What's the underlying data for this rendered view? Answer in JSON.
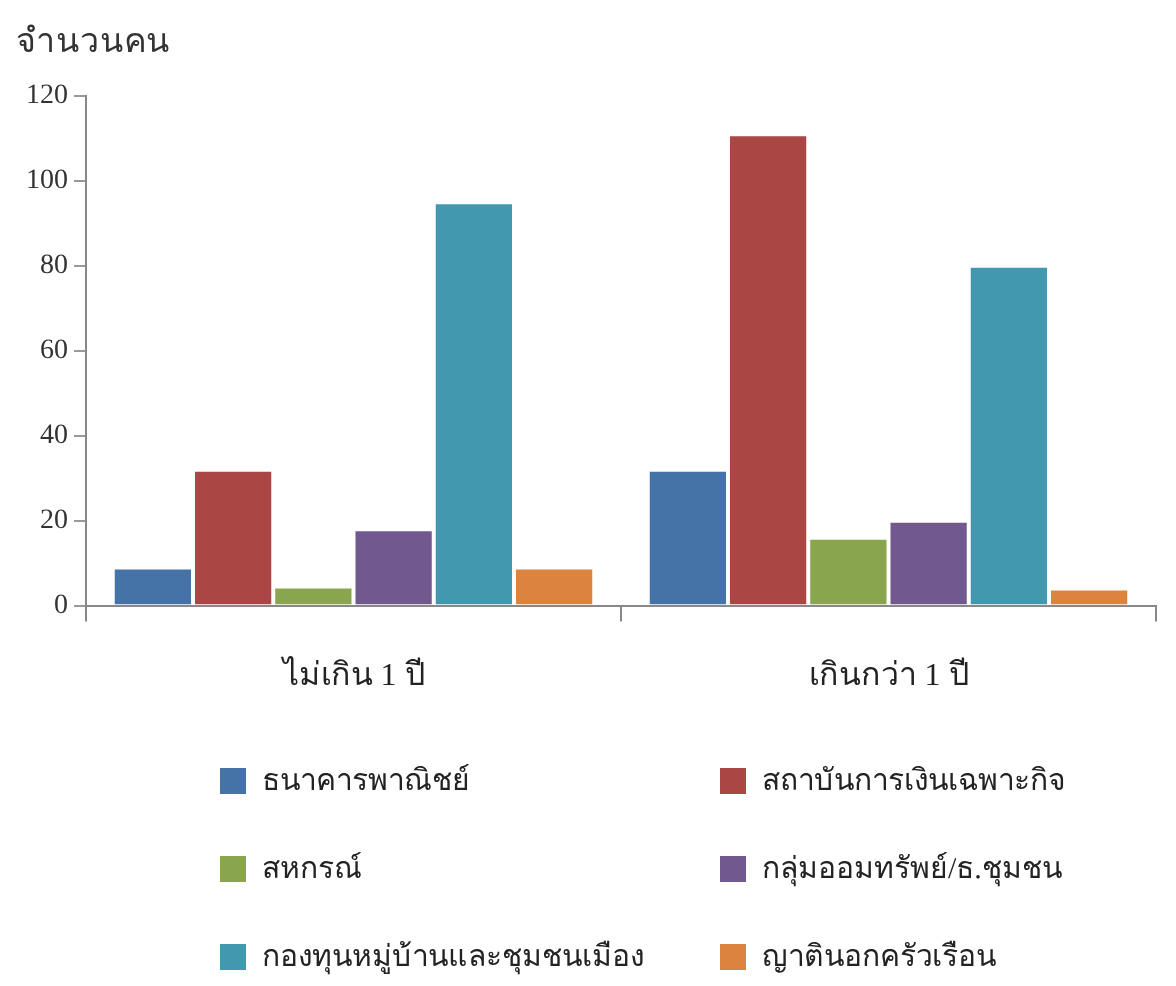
{
  "chart_data": {
    "type": "bar",
    "ylabel": "จำนวนคน",
    "categories": [
      "ไม่เกิน 1 ปี",
      "เกินกว่า 1 ปี"
    ],
    "series": [
      {
        "name": "ธนาคารพาณิชย์",
        "color": "#4572a7",
        "values": [
          9,
          32
        ]
      },
      {
        "name": "สถาบันการเงินเฉพาะกิจ",
        "color": "#aa4643",
        "values": [
          32,
          111
        ]
      },
      {
        "name": "สหกรณ์",
        "color": "#89a54e",
        "values": [
          4.5,
          16
        ]
      },
      {
        "name": "กลุ่มออมทรัพย์/ธ.ชุมชน",
        "color": "#71588f",
        "values": [
          18,
          20
        ]
      },
      {
        "name": "กองทุนหมู่บ้านและชุมชนเมือง",
        "color": "#4198af",
        "values": [
          95,
          80
        ]
      },
      {
        "name": "ญาตินอกครัวเรือน",
        "color": "#db843d",
        "values": [
          9,
          4
        ]
      }
    ],
    "ylim": [
      0,
      120
    ],
    "yticks": [
      0,
      20,
      40,
      60,
      80,
      100,
      120
    ],
    "grid": false,
    "legend": "bottom"
  }
}
